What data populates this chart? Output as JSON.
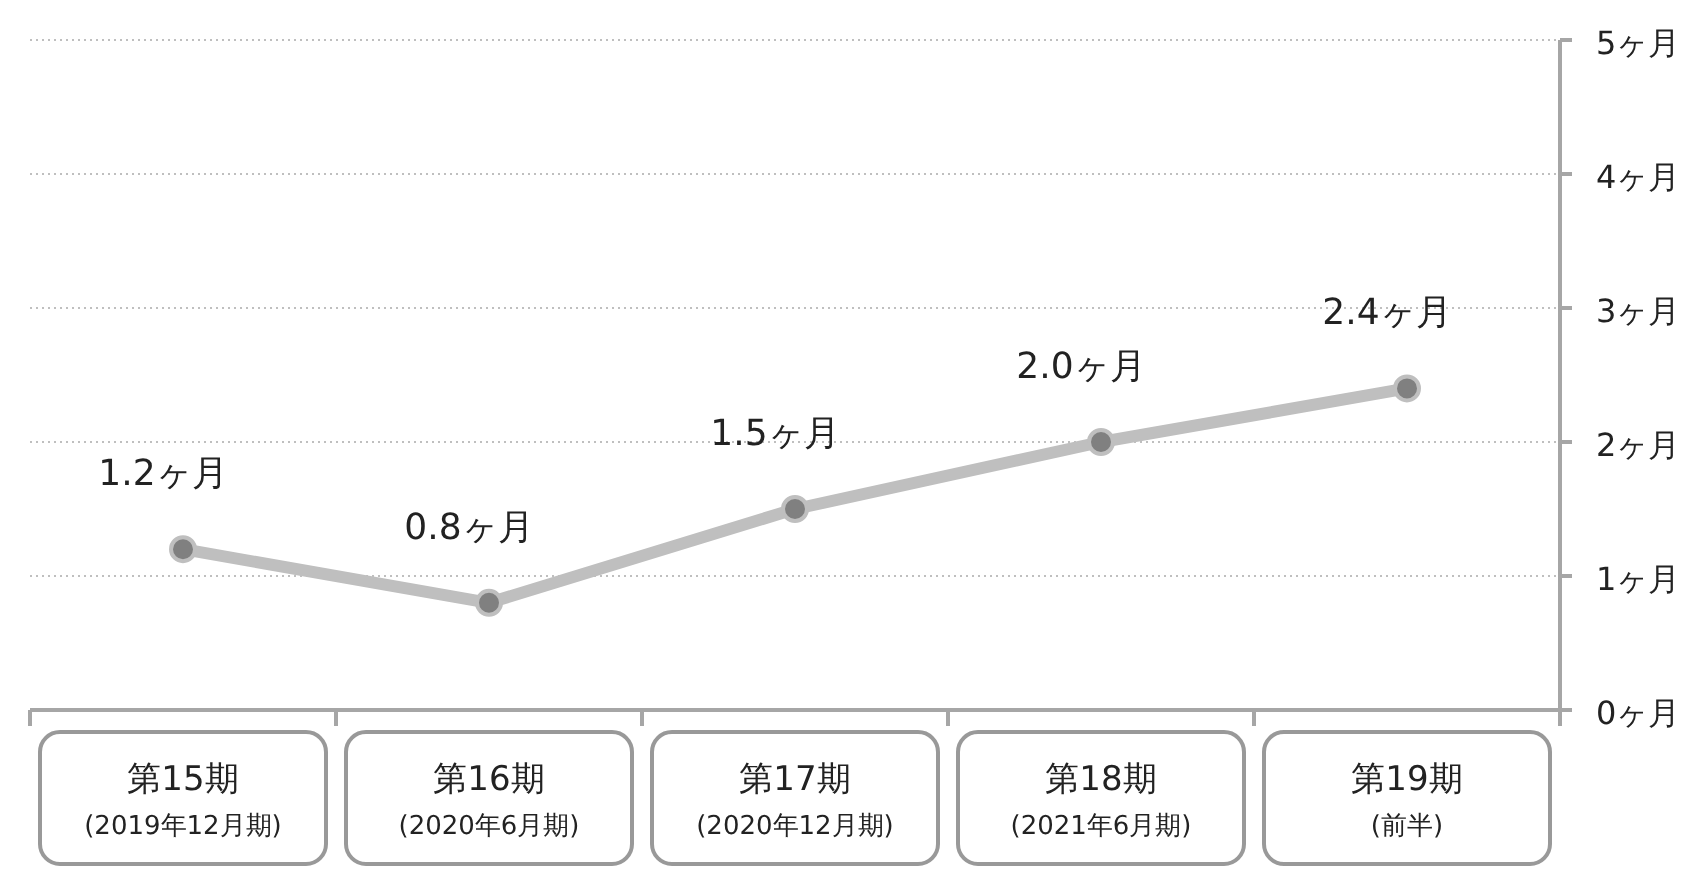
{
  "chart_data": {
    "type": "line",
    "categories": [
      "第15期\n(2019年12月期)",
      "第16期\n(2020年6月期)",
      "第17期\n(2020年12月期)",
      "第18期\n(2021年6月期)",
      "第19期\n(前半)"
    ],
    "series": [
      {
        "color": "#bfbfbf",
        "values": [
          1.2,
          0.8,
          1.5,
          2.0,
          2.4
        ],
        "value_labels": [
          "1.2ヶ月",
          "0.8ヶ月",
          "1.5ヶ月",
          "2.0ヶ月",
          "2.4ヶ月"
        ]
      }
    ],
    "ylim": [
      0,
      5
    ],
    "yticks": [
      {
        "value": 0,
        "label": "0ヶ月"
      },
      {
        "value": 1,
        "label": "1ヶ月"
      },
      {
        "value": 2,
        "label": "2ヶ月"
      },
      {
        "value": 3,
        "label": "3ヶ月"
      },
      {
        "value": 4,
        "label": "4ヶ月"
      },
      {
        "value": 5,
        "label": "5ヶ月"
      }
    ],
    "grid": "y",
    "marker": "circle",
    "line_style": "solid"
  }
}
